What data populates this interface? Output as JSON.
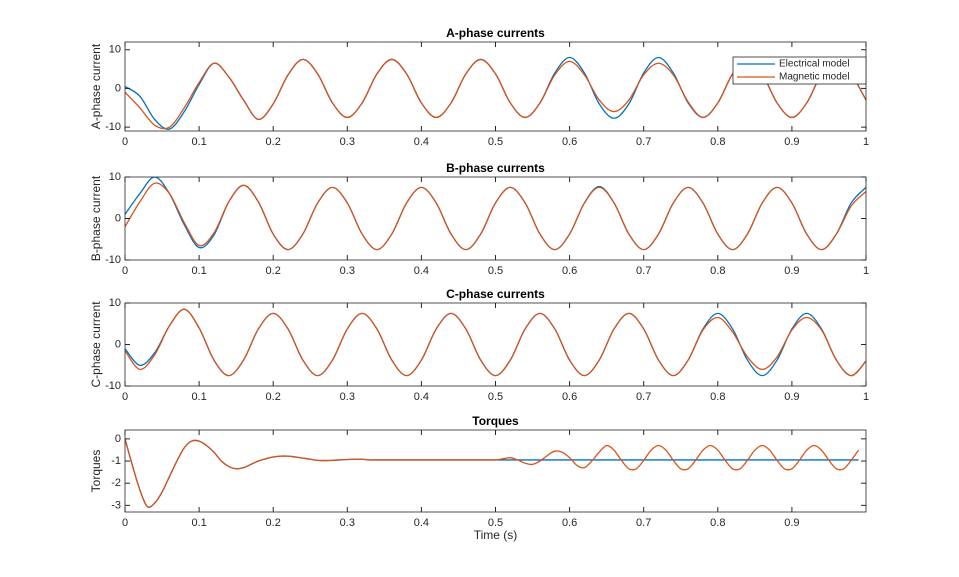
{
  "chart_data": [
    {
      "type": "line",
      "title": "A-phase currents",
      "y_label": "A-phase current",
      "x": [
        0,
        0.02,
        0.04,
        0.06,
        0.08,
        0.1,
        0.12,
        0.14,
        0.16,
        0.18,
        0.2,
        0.22,
        0.24,
        0.26,
        0.28,
        0.3,
        0.32,
        0.34,
        0.36,
        0.38,
        0.4,
        0.42,
        0.44,
        0.46,
        0.48,
        0.5,
        0.52,
        0.54,
        0.56,
        0.58,
        0.6,
        0.62,
        0.64,
        0.66,
        0.68,
        0.7,
        0.72,
        0.74,
        0.76,
        0.78,
        0.8,
        0.82,
        0.84,
        0.86,
        0.88,
        0.9,
        0.92,
        0.94,
        0.96,
        0.98,
        1
      ],
      "series": [
        {
          "name": "Electrical model",
          "color": "#0072BD",
          "values": [
            0.5,
            -2,
            -8,
            -10.5,
            -6,
            1,
            6.5,
            3,
            -3,
            -8,
            -4,
            3.5,
            7.5,
            3.75,
            -3.75,
            -7.5,
            -3.75,
            3.75,
            7.5,
            3.75,
            -3.75,
            -7.5,
            -3.75,
            3.75,
            7.5,
            3.75,
            -3.75,
            -7.5,
            -3.75,
            4,
            8,
            4,
            -4,
            -7.7,
            -4,
            4,
            8,
            4,
            -3.75,
            -7.5,
            -3.75,
            3.75,
            7.5,
            3.75,
            -3.75,
            -7.5,
            -3.75,
            3.75,
            7.5,
            3.75,
            -3
          ]
        },
        {
          "name": "Magnetic model",
          "color": "#D95319",
          "values": [
            -1,
            -5,
            -9.5,
            -10,
            -5,
            1.5,
            6.5,
            3,
            -3,
            -8,
            -4,
            3.5,
            7.5,
            3.75,
            -3.75,
            -7.5,
            -3.75,
            3.75,
            7.5,
            3.75,
            -3.75,
            -7.5,
            -3.75,
            3.75,
            7.5,
            3.75,
            -3.75,
            -7.5,
            -3.75,
            3.5,
            7,
            3.5,
            -3,
            -6,
            -3,
            3.5,
            6.5,
            3.5,
            -3.5,
            -7.5,
            -3.75,
            3.75,
            7.5,
            3.75,
            -3.75,
            -7.5,
            -3.75,
            3.75,
            7.5,
            3.75,
            -3
          ]
        }
      ],
      "xlim": [
        0,
        1
      ],
      "ylim": [
        -11,
        12
      ],
      "xticks": [
        0,
        0.1,
        0.2,
        0.3,
        0.4,
        0.5,
        0.6,
        0.7,
        0.8,
        0.9,
        1
      ],
      "yticks": [
        -10,
        0,
        10
      ],
      "legend": "upper right"
    },
    {
      "type": "line",
      "title": "B-phase currents",
      "y_label": "B-phase current",
      "x": [
        0,
        0.02,
        0.04,
        0.06,
        0.08,
        0.1,
        0.12,
        0.14,
        0.16,
        0.18,
        0.2,
        0.22,
        0.24,
        0.26,
        0.28,
        0.3,
        0.32,
        0.34,
        0.36,
        0.38,
        0.4,
        0.42,
        0.44,
        0.46,
        0.48,
        0.5,
        0.52,
        0.54,
        0.56,
        0.58,
        0.6,
        0.62,
        0.64,
        0.66,
        0.68,
        0.7,
        0.72,
        0.74,
        0.76,
        0.78,
        0.8,
        0.82,
        0.84,
        0.86,
        0.88,
        0.9,
        0.92,
        0.94,
        0.96,
        0.98,
        1
      ],
      "series": [
        {
          "color": "#0072BD",
          "values": [
            1,
            6,
            10,
            6,
            -1.5,
            -7,
            -4,
            4,
            8,
            4,
            -3.75,
            -7.5,
            -3.75,
            3.75,
            7.5,
            3.75,
            -3.75,
            -7.5,
            -3.75,
            3.75,
            7.5,
            3.75,
            -3.75,
            -7.5,
            -3.75,
            3.75,
            7.5,
            3.75,
            -3.75,
            -7.5,
            -3.75,
            3.75,
            7.7,
            3.75,
            -3.75,
            -7.5,
            -3.75,
            3.75,
            7.5,
            3.75,
            -3.75,
            -7.5,
            -3.75,
            3.75,
            7.5,
            3.75,
            -3.75,
            -7.5,
            -3.75,
            3.75,
            7.5
          ]
        },
        {
          "color": "#D95319",
          "values": [
            -2,
            4,
            8.5,
            6,
            -1,
            -6.5,
            -3.5,
            4,
            8,
            4,
            -3.75,
            -7.5,
            -3.75,
            3.75,
            7.5,
            3.75,
            -3.75,
            -7.5,
            -3.75,
            3.75,
            7.5,
            3.75,
            -3.75,
            -7.5,
            -3.75,
            3.75,
            7.5,
            3.75,
            -3.75,
            -7.5,
            -3.75,
            3.75,
            7.5,
            3.75,
            -3.75,
            -7.5,
            -3.75,
            3.75,
            7.5,
            3.75,
            -3.75,
            -7.5,
            -3.75,
            3.75,
            7.5,
            3.75,
            -3.75,
            -7.5,
            -3.75,
            3,
            6.5
          ]
        }
      ],
      "xlim": [
        0,
        1
      ],
      "ylim": [
        -10,
        10
      ],
      "xticks": [
        0,
        0.1,
        0.2,
        0.3,
        0.4,
        0.5,
        0.6,
        0.7,
        0.8,
        0.9,
        1
      ],
      "yticks": [
        -10,
        0,
        10
      ]
    },
    {
      "type": "line",
      "title": "C-phase currents",
      "y_label": "C-phase current",
      "x": [
        0,
        0.02,
        0.04,
        0.06,
        0.08,
        0.1,
        0.12,
        0.14,
        0.16,
        0.18,
        0.2,
        0.22,
        0.24,
        0.26,
        0.28,
        0.3,
        0.32,
        0.34,
        0.36,
        0.38,
        0.4,
        0.42,
        0.44,
        0.46,
        0.48,
        0.5,
        0.52,
        0.54,
        0.56,
        0.58,
        0.6,
        0.62,
        0.64,
        0.66,
        0.68,
        0.7,
        0.72,
        0.74,
        0.76,
        0.78,
        0.8,
        0.82,
        0.84,
        0.86,
        0.88,
        0.9,
        0.92,
        0.94,
        0.96,
        0.98,
        1
      ],
      "series": [
        {
          "color": "#0072BD",
          "values": [
            -1,
            -5,
            -2,
            4.5,
            8.5,
            4,
            -3.75,
            -7.5,
            -3.75,
            3.75,
            7.5,
            3.75,
            -3.75,
            -7.5,
            -3.75,
            3.75,
            7.5,
            3.75,
            -3.75,
            -7.5,
            -3.75,
            3.75,
            7.5,
            3.75,
            -3.75,
            -7.5,
            -3.75,
            3.75,
            7.5,
            3.75,
            -3.75,
            -7.5,
            -3.75,
            3.75,
            7.5,
            3.75,
            -3.75,
            -7.5,
            -3.75,
            3.75,
            7.5,
            3.75,
            -3.75,
            -7.5,
            -3.75,
            3.75,
            7.5,
            3.75,
            -3.75,
            -7.5,
            -4
          ]
        },
        {
          "color": "#D95319",
          "values": [
            -1.5,
            -6,
            -2.5,
            4.5,
            8.5,
            4,
            -3.75,
            -7.5,
            -3.75,
            3.75,
            7.5,
            3.75,
            -3.75,
            -7.5,
            -3.75,
            3.75,
            7.5,
            3.75,
            -3.75,
            -7.5,
            -3.75,
            3.75,
            7.5,
            3.75,
            -3.75,
            -7.5,
            -3.75,
            3.75,
            7.5,
            3.75,
            -3.75,
            -7.5,
            -3.75,
            3.75,
            7.5,
            3.75,
            -3.75,
            -7.5,
            -3.75,
            3.5,
            6.5,
            3,
            -3,
            -6,
            -3,
            3.5,
            6.5,
            3.5,
            -3.75,
            -7.5,
            -4
          ]
        }
      ],
      "xlim": [
        0,
        1
      ],
      "ylim": [
        -10,
        10
      ],
      "xticks": [
        0,
        0.1,
        0.2,
        0.3,
        0.4,
        0.5,
        0.6,
        0.7,
        0.8,
        0.9,
        1
      ],
      "yticks": [
        -10,
        0,
        10
      ]
    },
    {
      "type": "line",
      "title": "Torques",
      "y_label": "Torques",
      "x_label": "Time (s)",
      "x": [
        0,
        0.01,
        0.02,
        0.03,
        0.04,
        0.05,
        0.06,
        0.07,
        0.08,
        0.09,
        0.1,
        0.11,
        0.12,
        0.13,
        0.14,
        0.15,
        0.16,
        0.17,
        0.18,
        0.19,
        0.2,
        0.21,
        0.22,
        0.23,
        0.24,
        0.25,
        0.26,
        0.27,
        0.28,
        0.29,
        0.3,
        0.31,
        0.32,
        0.33,
        0.34,
        0.35,
        0.36,
        0.37,
        0.38,
        0.39,
        0.4,
        0.41,
        0.42,
        0.43,
        0.44,
        0.45,
        0.46,
        0.47,
        0.48,
        0.49,
        0.5,
        0.51,
        0.52,
        0.53,
        0.54,
        0.55,
        0.56,
        0.57,
        0.58,
        0.59,
        0.6,
        0.61,
        0.62,
        0.63,
        0.64,
        0.65,
        0.66,
        0.67,
        0.68,
        0.69,
        0.7,
        0.71,
        0.72,
        0.73,
        0.74,
        0.75,
        0.76,
        0.77,
        0.78,
        0.79,
        0.8,
        0.81,
        0.82,
        0.83,
        0.84,
        0.85,
        0.86,
        0.87,
        0.88,
        0.89,
        0.9,
        0.91,
        0.92,
        0.93,
        0.94,
        0.95,
        0.96,
        0.97,
        0.98,
        0.99
      ],
      "series": [
        {
          "color": "#0072BD",
          "values": [
            0,
            -1.2,
            -2.3,
            -3.05,
            -2.9,
            -2.4,
            -1.7,
            -1,
            -0.4,
            -0.1,
            -0.1,
            -0.3,
            -0.6,
            -1,
            -1.25,
            -1.35,
            -1.3,
            -1.15,
            -1,
            -0.9,
            -0.82,
            -0.78,
            -0.78,
            -0.82,
            -0.87,
            -0.92,
            -0.97,
            -0.98,
            -0.97,
            -0.95,
            -0.93,
            -0.92,
            -0.92,
            -0.95,
            -0.95,
            -0.95,
            -0.95,
            -0.95,
            -0.95,
            -0.95,
            -0.95,
            -0.95,
            -0.95,
            -0.95,
            -0.95,
            -0.95,
            -0.95,
            -0.95,
            -0.95,
            -0.95,
            -0.95,
            -0.95,
            -0.95,
            -0.95,
            -0.95,
            -0.95,
            -0.95,
            -0.95,
            -0.95,
            -0.95,
            -0.95,
            -0.95,
            -0.95,
            -0.95,
            -0.95,
            -0.95,
            -0.95,
            -0.95,
            -0.95,
            -0.95,
            -0.95,
            -0.95,
            -0.95,
            -0.95,
            -0.95,
            -0.95,
            -0.95,
            -0.95,
            -0.95,
            -0.95,
            -0.95,
            -0.95,
            -0.95,
            -0.95,
            -0.95,
            -0.95,
            -0.95,
            -0.95,
            -0.95,
            -0.95,
            -0.95,
            -0.95,
            -0.95,
            -0.95,
            -0.95,
            -0.95,
            -0.95,
            -0.95,
            -0.95,
            -0.95
          ]
        },
        {
          "color": "#D95319",
          "values": [
            0,
            -1.2,
            -2.3,
            -3.05,
            -2.9,
            -2.4,
            -1.7,
            -1,
            -0.4,
            -0.1,
            -0.1,
            -0.3,
            -0.6,
            -1,
            -1.25,
            -1.35,
            -1.3,
            -1.15,
            -1,
            -0.9,
            -0.82,
            -0.78,
            -0.78,
            -0.82,
            -0.87,
            -0.92,
            -0.97,
            -0.98,
            -0.97,
            -0.95,
            -0.93,
            -0.92,
            -0.92,
            -0.95,
            -0.95,
            -0.95,
            -0.95,
            -0.95,
            -0.95,
            -0.95,
            -0.95,
            -0.95,
            -0.95,
            -0.95,
            -0.95,
            -0.95,
            -0.95,
            -0.95,
            -0.95,
            -0.95,
            -0.95,
            -0.9,
            -0.85,
            -0.95,
            -1.1,
            -1.15,
            -1,
            -0.75,
            -0.55,
            -0.6,
            -0.85,
            -1.2,
            -1.3,
            -1,
            -0.6,
            -0.3,
            -0.51,
            -0.97,
            -1.35,
            -1.35,
            -0.97,
            -0.51,
            -0.3,
            -0.51,
            -0.97,
            -1.35,
            -1.35,
            -0.97,
            -0.51,
            -0.3,
            -0.51,
            -0.97,
            -1.35,
            -1.35,
            -0.97,
            -0.51,
            -0.3,
            -0.51,
            -0.97,
            -1.35,
            -1.35,
            -0.97,
            -0.51,
            -0.3,
            -0.51,
            -0.97,
            -1.35,
            -1.35,
            -0.97,
            -0.51
          ]
        }
      ],
      "xlim": [
        0,
        1
      ],
      "ylim": [
        -3.3,
        0.4
      ],
      "xticks": [
        0,
        0.1,
        0.2,
        0.3,
        0.4,
        0.5,
        0.6,
        0.7,
        0.8,
        0.9
      ],
      "yticks": [
        -3,
        -2,
        -1,
        0
      ]
    }
  ]
}
